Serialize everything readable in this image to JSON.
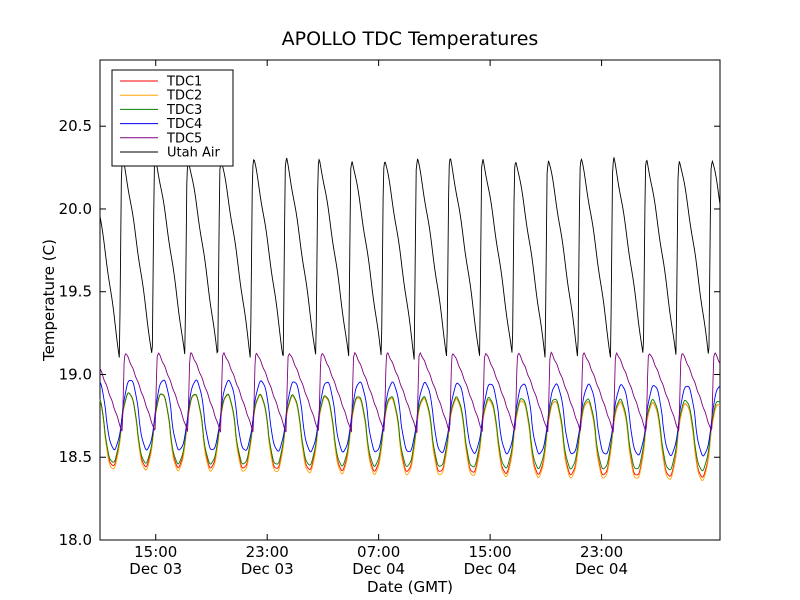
{
  "chart_data": {
    "type": "line",
    "title": "APOLLO TDC Temperatures",
    "xlabel": "Date (GMT)",
    "ylabel": "Temperature (C)",
    "xlim_hours": [
      0,
      44.5
    ],
    "ylim": [
      18.0,
      20.9
    ],
    "y_ticks": [
      "18.0",
      "18.5",
      "19.0",
      "19.5",
      "20.0",
      "20.5"
    ],
    "y_tick_values": [
      18.0,
      18.5,
      19.0,
      19.5,
      20.0,
      20.5
    ],
    "x_ticks": [
      {
        "hour": 4,
        "time": "15:00",
        "date": "Dec 03"
      },
      {
        "hour": 12,
        "time": "23:00",
        "date": "Dec 03"
      },
      {
        "hour": 20,
        "time": "07:00",
        "date": "Dec 04"
      },
      {
        "hour": 28,
        "time": "15:00",
        "date": "Dec 04"
      },
      {
        "hour": 36,
        "time": "23:00",
        "date": "Dec 04"
      }
    ],
    "grid": false,
    "legend_position": "top-left",
    "series": [
      {
        "name": "TDC1",
        "color": "#ff0000",
        "shape": "sine",
        "period_hours": 2.35,
        "phase_hours": 1.5,
        "mean": [
          18.67,
          18.6
        ],
        "amplitude": 0.22
      },
      {
        "name": "TDC2",
        "color": "#ffa500",
        "shape": "sine",
        "period_hours": 2.35,
        "phase_hours": 1.5,
        "mean": [
          18.66,
          18.59
        ],
        "amplitude": 0.23
      },
      {
        "name": "TDC3",
        "color": "#008000",
        "shape": "sine",
        "period_hours": 2.35,
        "phase_hours": 1.5,
        "mean": [
          18.68,
          18.63
        ],
        "amplitude": 0.21
      },
      {
        "name": "TDC4",
        "color": "#0000ff",
        "shape": "sine",
        "period_hours": 2.35,
        "phase_hours": 1.6,
        "mean": [
          18.76,
          18.72
        ],
        "amplitude": 0.21
      },
      {
        "name": "TDC5",
        "color": "#800080",
        "shape": "sawtooth",
        "period_hours": 2.35,
        "phase_hours": 1.6,
        "low": 18.65,
        "high": 19.13
      },
      {
        "name": "Utah Air",
        "color": "#000000",
        "shape": "sawtooth",
        "period_hours": 2.35,
        "phase_hours": 1.4,
        "low": 19.1,
        "high": 20.3
      }
    ]
  }
}
